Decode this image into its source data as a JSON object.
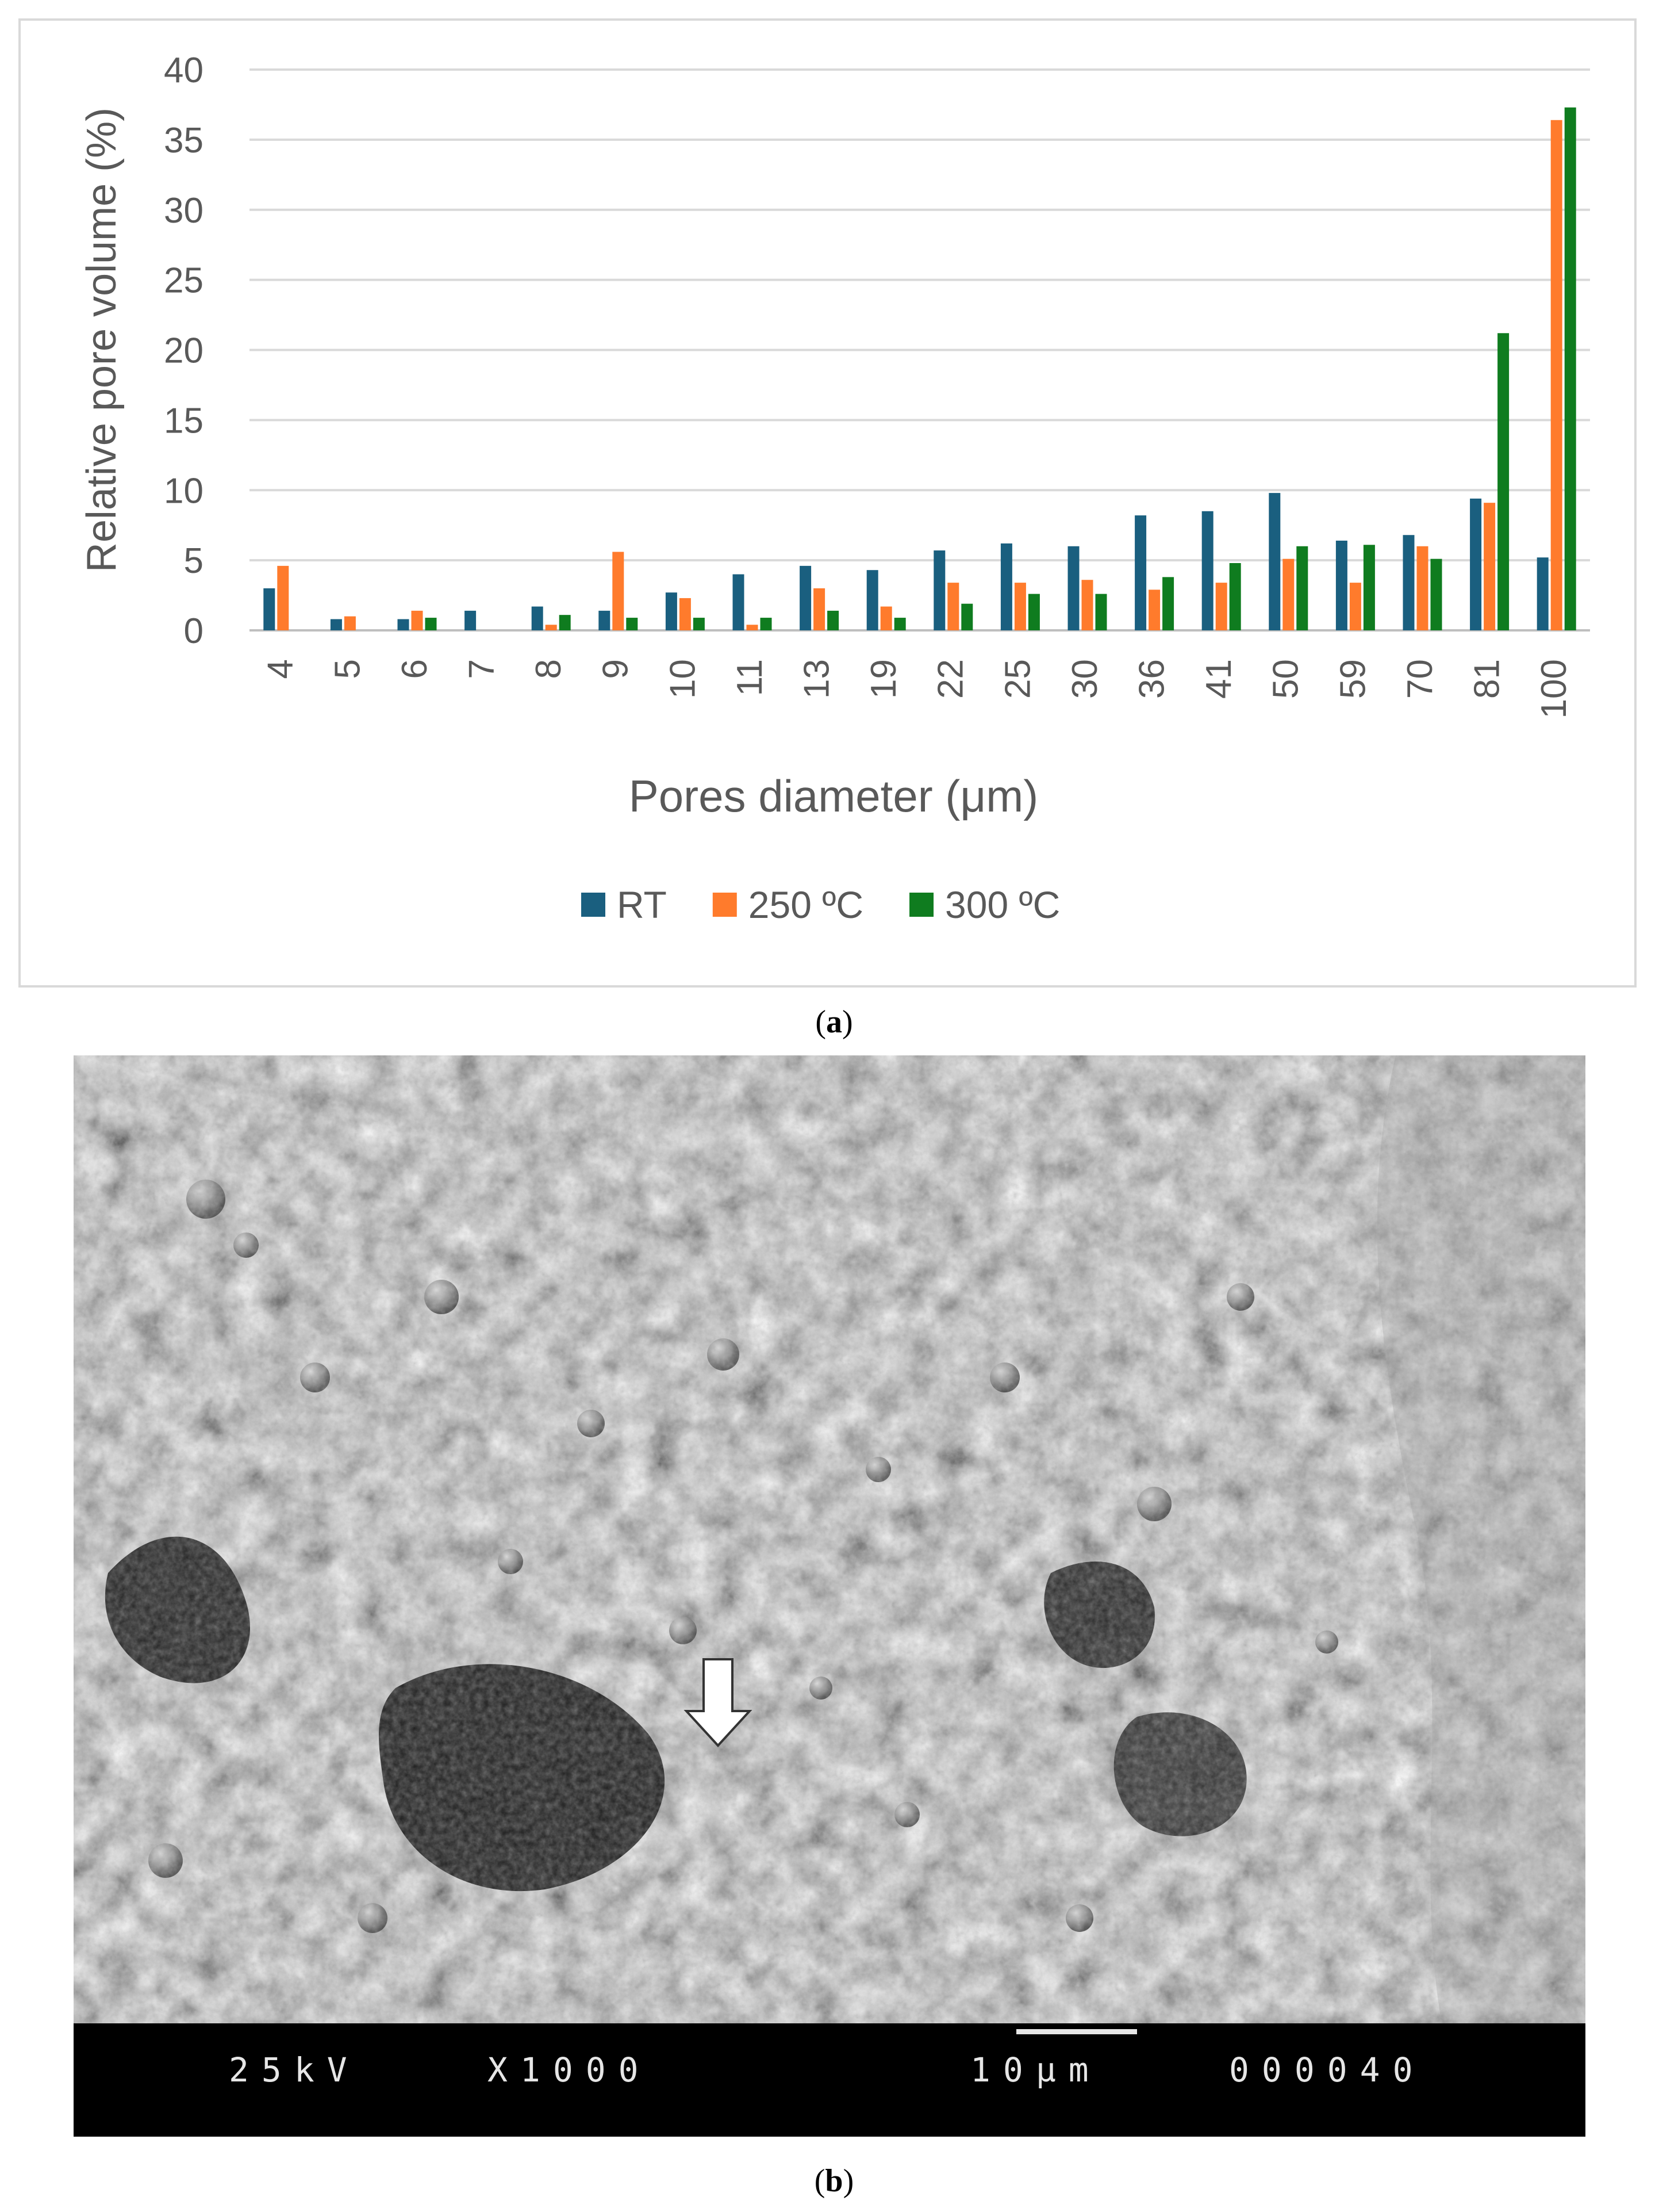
{
  "chart_data": {
    "type": "bar",
    "title": "",
    "ylabel": "Relative pore volume (%)",
    "xlabel": "Pores diameter  (μm)",
    "ylim": [
      0,
      40
    ],
    "yticks": [
      0,
      5,
      10,
      15,
      20,
      25,
      30,
      35,
      40
    ],
    "grid": true,
    "legend_position": "bottom",
    "categories": [
      "4",
      "5",
      "6",
      "7",
      "8",
      "9",
      "10",
      "11",
      "13",
      "19",
      "22",
      "25",
      "30",
      "36",
      "41",
      "50",
      "59",
      "70",
      "81",
      "100"
    ],
    "series": [
      {
        "name": "RT",
        "color": "#1a5f7f",
        "values": [
          3.0,
          0.8,
          0.8,
          1.4,
          1.7,
          1.4,
          2.7,
          4.0,
          4.6,
          4.3,
          5.7,
          6.2,
          6.0,
          8.2,
          8.5,
          9.8,
          6.4,
          6.8,
          9.4,
          5.2
        ]
      },
      {
        "name": "250 ºC",
        "color": "#ff7b2c",
        "values": [
          4.6,
          1.0,
          1.4,
          0.0,
          0.4,
          5.6,
          2.3,
          0.4,
          3.0,
          1.7,
          3.4,
          3.4,
          3.6,
          2.9,
          3.4,
          5.1,
          3.4,
          6.0,
          9.1,
          36.4
        ]
      },
      {
        "name": "300 ºC",
        "color": "#0f7c1f",
        "values": [
          0.0,
          0.0,
          0.9,
          0.0,
          1.1,
          0.9,
          0.9,
          0.9,
          1.4,
          0.9,
          1.9,
          2.6,
          2.6,
          3.8,
          4.8,
          6.0,
          6.1,
          5.1,
          21.2,
          37.3
        ]
      }
    ]
  },
  "figure": {
    "caption_a": "a",
    "caption_b": "b",
    "sem": {
      "voltage": "25kV",
      "magnification": "X1000",
      "scale": "10μm",
      "image_id": "000040"
    }
  }
}
